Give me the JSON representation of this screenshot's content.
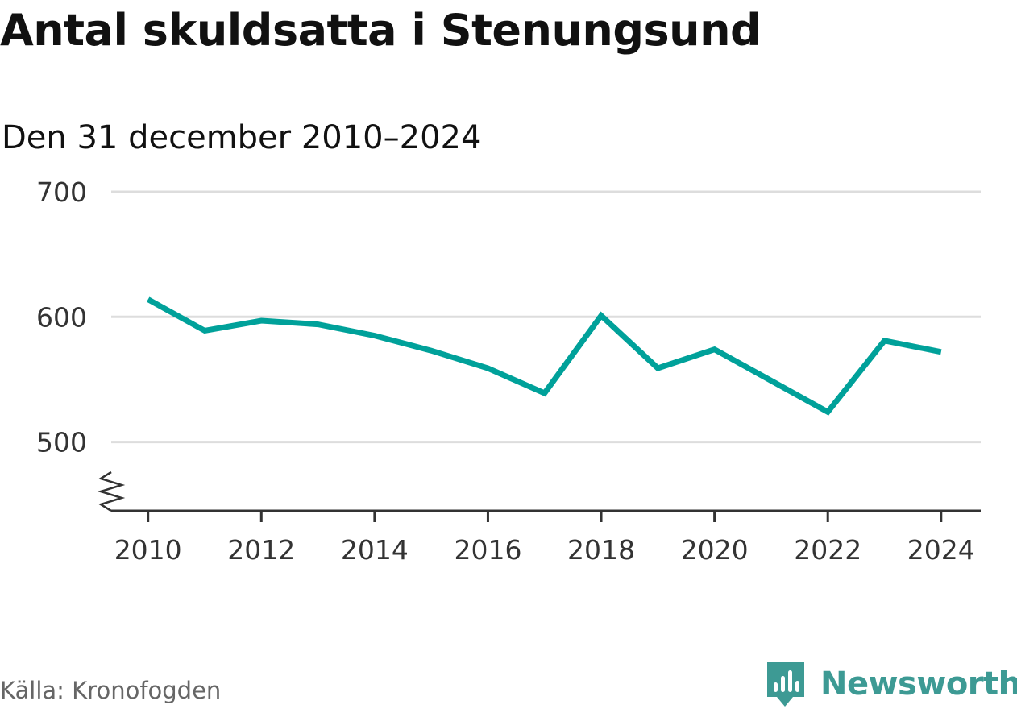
{
  "header": {
    "title": "Antal skuldsatta i Stenungsund",
    "subtitle": "Den 31 december 2010–2024"
  },
  "chart_data": {
    "type": "line",
    "title": "Antal skuldsatta i Stenungsund",
    "subtitle": "Den 31 december 2010–2024",
    "xlabel": "",
    "ylabel": "",
    "x": [
      2010,
      2011,
      2012,
      2013,
      2014,
      2015,
      2016,
      2017,
      2018,
      2019,
      2020,
      2021,
      2022,
      2023,
      2024
    ],
    "series": [
      {
        "name": "Antal skuldsatta",
        "values": [
          614,
          589,
          597,
          594,
          585,
          573,
          559,
          539,
          601,
          559,
          574,
          549,
          524,
          581,
          572
        ],
        "color": "#00a19a"
      }
    ],
    "x_ticks": [
      2010,
      2012,
      2014,
      2016,
      2018,
      2020,
      2022,
      2024
    ],
    "y_ticks": [
      500,
      600,
      700
    ],
    "ylim": [
      445,
      700
    ],
    "xlim": [
      2009.35,
      2024.7
    ],
    "grid": true,
    "axis_break": true,
    "legend": "none"
  },
  "footer": {
    "source": "Källa: Kronofogden",
    "brand": "Newsworthy",
    "brand_color": "#3d9a94",
    "brand_icon": "newsworthy-logo-icon"
  },
  "colors": {
    "line": "#00a19a",
    "grid": "#dddddd",
    "axis": "#333333",
    "text": "#111111",
    "muted": "#666666"
  }
}
